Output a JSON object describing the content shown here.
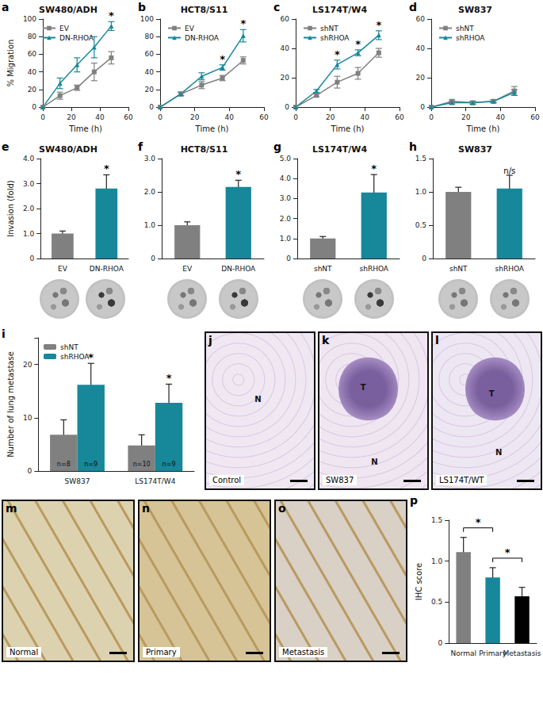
{
  "chart_data": [
    {
      "panel": "a",
      "type": "line",
      "title": "SW480/ADH",
      "x": [
        0,
        12,
        24,
        36,
        48
      ],
      "xlabel": "Time (h)",
      "ylabel": "% Migration",
      "xlim": [
        0,
        60
      ],
      "xticks": [
        0,
        20,
        40,
        60
      ],
      "ylim": [
        0,
        100
      ],
      "yticks": [
        0,
        20,
        40,
        60,
        80,
        100
      ],
      "grid": false,
      "legend": "upper left",
      "series": [
        {
          "name": "EV",
          "color": "#808080",
          "marker": "square",
          "values": [
            0,
            13,
            22,
            40,
            56
          ],
          "errors": [
            0,
            4,
            3,
            10,
            7
          ]
        },
        {
          "name": "DN-RHOA",
          "color": "#17879a",
          "marker": "triangle",
          "values": [
            0,
            27,
            48,
            68,
            92
          ],
          "errors": [
            0,
            6,
            8,
            12,
            5
          ]
        }
      ],
      "annotations": [
        {
          "x": 48,
          "text": "*"
        }
      ]
    },
    {
      "panel": "b",
      "type": "line",
      "title": "HCT8/S11",
      "x": [
        0,
        12,
        24,
        36,
        48
      ],
      "xlabel": "Time (h)",
      "xlim": [
        0,
        60
      ],
      "xticks": [
        0,
        20,
        40,
        60
      ],
      "ylim": [
        0,
        100
      ],
      "yticks": [
        0,
        20,
        40,
        60,
        80,
        100
      ],
      "grid": false,
      "legend": "upper left",
      "series": [
        {
          "name": "EV",
          "color": "#808080",
          "marker": "square",
          "values": [
            0,
            15,
            25,
            33,
            53
          ],
          "errors": [
            0,
            2,
            4,
            3,
            4
          ]
        },
        {
          "name": "DN-RHOA",
          "color": "#17879a",
          "marker": "triangle",
          "values": [
            0,
            15,
            35,
            45,
            81
          ],
          "errors": [
            0,
            2,
            4,
            3,
            7
          ]
        }
      ],
      "annotations": [
        {
          "x": 36,
          "text": "*"
        },
        {
          "x": 48,
          "text": "*"
        }
      ]
    },
    {
      "panel": "c",
      "type": "line",
      "title": "LS174T/W4",
      "x": [
        0,
        12,
        24,
        36,
        48
      ],
      "xlabel": "Time (h)",
      "xlim": [
        0,
        60
      ],
      "xticks": [
        0,
        20,
        40,
        60
      ],
      "ylim": [
        0,
        60
      ],
      "yticks": [
        0,
        20,
        40,
        60
      ],
      "grid": false,
      "legend": "upper left",
      "series": [
        {
          "name": "shNT",
          "color": "#808080",
          "marker": "square",
          "values": [
            0,
            8,
            17,
            23,
            37
          ],
          "errors": [
            0,
            1,
            4,
            4,
            3
          ]
        },
        {
          "name": "shRHOA",
          "color": "#17879a",
          "marker": "triangle",
          "values": [
            0,
            11,
            29,
            37,
            49
          ],
          "errors": [
            0,
            1,
            3,
            2,
            3
          ]
        }
      ],
      "annotations": [
        {
          "x": 24,
          "text": "*"
        },
        {
          "x": 36,
          "text": "*"
        },
        {
          "x": 48,
          "text": "*"
        }
      ]
    },
    {
      "panel": "d",
      "type": "line",
      "title": "SW837",
      "x": [
        0,
        12,
        24,
        36,
        48
      ],
      "xlabel": "Time (h)",
      "xlim": [
        0,
        60
      ],
      "xticks": [
        0,
        20,
        40,
        60
      ],
      "ylim": [
        0,
        60
      ],
      "yticks": [
        0,
        20,
        40,
        60
      ],
      "grid": false,
      "legend": "upper left",
      "series": [
        {
          "name": "shNT",
          "color": "#808080",
          "marker": "square",
          "values": [
            0,
            4,
            3,
            4,
            11
          ],
          "errors": [
            0,
            1,
            1,
            1,
            3
          ]
        },
        {
          "name": "shRHOA",
          "color": "#17879a",
          "marker": "triangle",
          "values": [
            0,
            3,
            3,
            4,
            10
          ],
          "errors": [
            0,
            1,
            1,
            1,
            2
          ]
        }
      ]
    },
    {
      "panel": "e",
      "type": "bar",
      "title": "SW480/ADH",
      "categories": [
        "EV",
        "DN-RHOA"
      ],
      "values": [
        1.0,
        2.8
      ],
      "errors": [
        0.1,
        0.55
      ],
      "colors": [
        "#808080",
        "#17879a"
      ],
      "ylabel": "Invasion (fold)",
      "ylim": [
        0,
        4
      ],
      "yticks": [
        0,
        {
          "value": 1,
          "label": "1.0"
        },
        {
          "value": 2,
          "label": "2.0"
        },
        {
          "value": 3,
          "label": "3.0"
        },
        {
          "value": 4,
          "label": "4.0"
        }
      ],
      "grid": false,
      "annotations": [
        {
          "category": "DN-RHOA",
          "text": "*"
        }
      ]
    },
    {
      "panel": "f",
      "type": "bar",
      "title": "HCT8/S11",
      "categories": [
        "EV",
        "DN-RHOA"
      ],
      "values": [
        1.0,
        2.15
      ],
      "errors": [
        0.1,
        0.2
      ],
      "colors": [
        "#808080",
        "#17879a"
      ],
      "ylim": [
        0,
        3
      ],
      "yticks": [
        0,
        {
          "value": 1,
          "label": "1.0"
        },
        {
          "value": 2,
          "label": "2.0"
        },
        {
          "value": 3,
          "label": "3.0"
        }
      ],
      "grid": false,
      "annotations": [
        {
          "category": "DN-RHOA",
          "text": "*"
        }
      ]
    },
    {
      "panel": "g",
      "type": "bar",
      "title": "LS174T/W4",
      "categories": [
        "shNT",
        "shRHOA"
      ],
      "values": [
        1.0,
        3.3
      ],
      "errors": [
        0.1,
        0.9
      ],
      "colors": [
        "#808080",
        "#17879a"
      ],
      "ylim": [
        0,
        5
      ],
      "yticks": [
        0,
        {
          "value": 1,
          "label": "1.0"
        },
        {
          "value": 2,
          "label": "2.0"
        },
        {
          "value": 3,
          "label": "3.0"
        },
        {
          "value": 4,
          "label": "4.0"
        },
        {
          "value": 5,
          "label": "5.0"
        }
      ],
      "grid": false,
      "annotations": [
        {
          "category": "shRHOA",
          "text": "*"
        }
      ]
    },
    {
      "panel": "h",
      "type": "bar",
      "title": "SW837",
      "categories": [
        "shNT",
        "shRHOA"
      ],
      "values": [
        1.0,
        1.05
      ],
      "errors": [
        0.07,
        0.2
      ],
      "colors": [
        "#808080",
        "#17879a"
      ],
      "ylim": [
        0,
        1.5
      ],
      "yticks": [
        0,
        0.5,
        {
          "value": 1,
          "label": "1.0"
        },
        1.5
      ],
      "grid": false,
      "annotations": [
        {
          "category": "shRHOA",
          "text": "n/s"
        }
      ]
    },
    {
      "panel": "i",
      "type": "bar",
      "categories": [
        "SW837",
        "LS174T/W4"
      ],
      "ylabel": "Number of lung metastase",
      "ylim": [
        0,
        25
      ],
      "yticks": [
        0,
        10,
        20
      ],
      "grid": false,
      "legend": "upper left",
      "series": [
        {
          "name": "shNT",
          "color": "#808080",
          "values": [
            6.8,
            4.8
          ],
          "errors": [
            2.8,
            2
          ],
          "n_labels": [
            "n=8",
            "n=10"
          ]
        },
        {
          "name": "shRHOA",
          "color": "#17879a",
          "values": [
            16.2,
            12.8
          ],
          "errors": [
            4,
            3.5
          ],
          "n_labels": [
            "n=9",
            "n=9"
          ]
        }
      ],
      "annotations": [
        {
          "category": "SW837",
          "series": "shRHOA",
          "text": "*"
        },
        {
          "category": "LS174T/W4",
          "series": "shRHOA",
          "text": "*"
        }
      ]
    },
    {
      "panel": "p",
      "type": "bar",
      "categories": [
        "Normal",
        "Primary",
        "Metastasis"
      ],
      "values": [
        1.11,
        0.8,
        0.57
      ],
      "errors": [
        0.18,
        0.12,
        0.11
      ],
      "colors": [
        "#808080",
        "#17879a",
        "#000000"
      ],
      "ylabel": "IHC score",
      "ylim": [
        0,
        1.5
      ],
      "yticks": [
        0,
        0.5,
        {
          "value": 1,
          "label": "1.0"
        },
        1.5
      ],
      "grid": false,
      "comparisons": [
        {
          "from": "Normal",
          "to": "Primary",
          "text": "*"
        },
        {
          "from": "Primary",
          "to": "Metastasis",
          "text": "*"
        }
      ]
    }
  ],
  "images": [
    {
      "panel": "j",
      "caption": "Control",
      "marks": [
        "N"
      ]
    },
    {
      "panel": "k",
      "caption": "SW837",
      "marks": [
        "T",
        "N"
      ]
    },
    {
      "panel": "l",
      "caption": "LS174T/WT",
      "marks": [
        "T",
        "N"
      ]
    },
    {
      "panel": "m",
      "caption": "Normal"
    },
    {
      "panel": "n",
      "caption": "Primary"
    },
    {
      "panel": "o",
      "caption": "Metastasis"
    }
  ]
}
